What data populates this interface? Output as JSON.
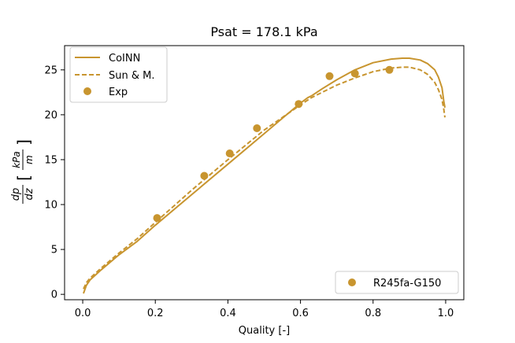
{
  "chart_data": {
    "type": "line",
    "title": "Psat = 178.1 kPa",
    "xlabel": "Quality [-]",
    "ylabel": "dp/dz [kPa/m]",
    "ylabel_parts": {
      "num": "dp",
      "den": "dz",
      "unit_num": "kPa",
      "unit_den": "m"
    },
    "xlim": [
      -0.05,
      1.05
    ],
    "ylim": [
      -0.6,
      27.7
    ],
    "xticks": [
      0.0,
      0.2,
      0.4,
      0.6,
      0.8,
      1.0
    ],
    "xtick_labels": [
      "0.0",
      "0.2",
      "0.4",
      "0.6",
      "0.8",
      "1.0"
    ],
    "yticks": [
      0,
      5,
      10,
      15,
      20,
      25
    ],
    "ytick_labels": [
      "0",
      "5",
      "10",
      "15",
      "20",
      "25"
    ],
    "color": "#c8952f",
    "legend_main": {
      "position": "top-left",
      "entries": [
        {
          "label": "CoINN",
          "style": "solid"
        },
        {
          "label": "Sun & M.",
          "style": "dashed"
        },
        {
          "label": "Exp",
          "style": "marker"
        }
      ]
    },
    "legend_secondary": {
      "position": "bottom-right",
      "label": "R245fa-G150"
    },
    "series": [
      {
        "name": "CoINN",
        "style": "solid",
        "x": [
          0.002,
          0.01,
          0.02,
          0.05,
          0.1,
          0.15,
          0.2,
          0.3,
          0.4,
          0.5,
          0.55,
          0.6,
          0.62,
          0.63,
          0.66,
          0.7,
          0.75,
          0.8,
          0.85,
          0.88,
          0.9,
          0.93,
          0.95,
          0.97,
          0.98,
          0.99,
          0.995,
          0.998
        ],
        "y": [
          0.1,
          1.0,
          1.6,
          2.7,
          4.4,
          5.9,
          7.7,
          11.1,
          14.5,
          17.9,
          19.6,
          21.3,
          21.9,
          22.1,
          22.9,
          23.9,
          25.0,
          25.8,
          26.2,
          26.3,
          26.3,
          26.1,
          25.7,
          25.0,
          24.2,
          23.0,
          21.5,
          20.8
        ]
      },
      {
        "name": "Sun & M.",
        "style": "dashed",
        "x": [
          0.002,
          0.01,
          0.02,
          0.05,
          0.1,
          0.15,
          0.2,
          0.3,
          0.4,
          0.5,
          0.6,
          0.63,
          0.66,
          0.7,
          0.75,
          0.8,
          0.85,
          0.88,
          0.9,
          0.93,
          0.95,
          0.97,
          0.98,
          0.99,
          0.995,
          0.998
        ],
        "y": [
          0.6,
          1.3,
          1.8,
          2.9,
          4.6,
          6.2,
          8.0,
          11.6,
          15.0,
          18.3,
          21.1,
          21.9,
          22.5,
          23.3,
          24.1,
          24.8,
          25.2,
          25.3,
          25.3,
          25.0,
          24.5,
          23.6,
          22.8,
          21.7,
          20.6,
          19.7
        ]
      },
      {
        "name": "Exp",
        "style": "marker",
        "x": [
          0.205,
          0.335,
          0.405,
          0.48,
          0.595,
          0.68,
          0.75,
          0.845
        ],
        "y": [
          8.5,
          13.2,
          15.7,
          18.5,
          21.2,
          24.3,
          24.6,
          25.0
        ]
      }
    ]
  }
}
